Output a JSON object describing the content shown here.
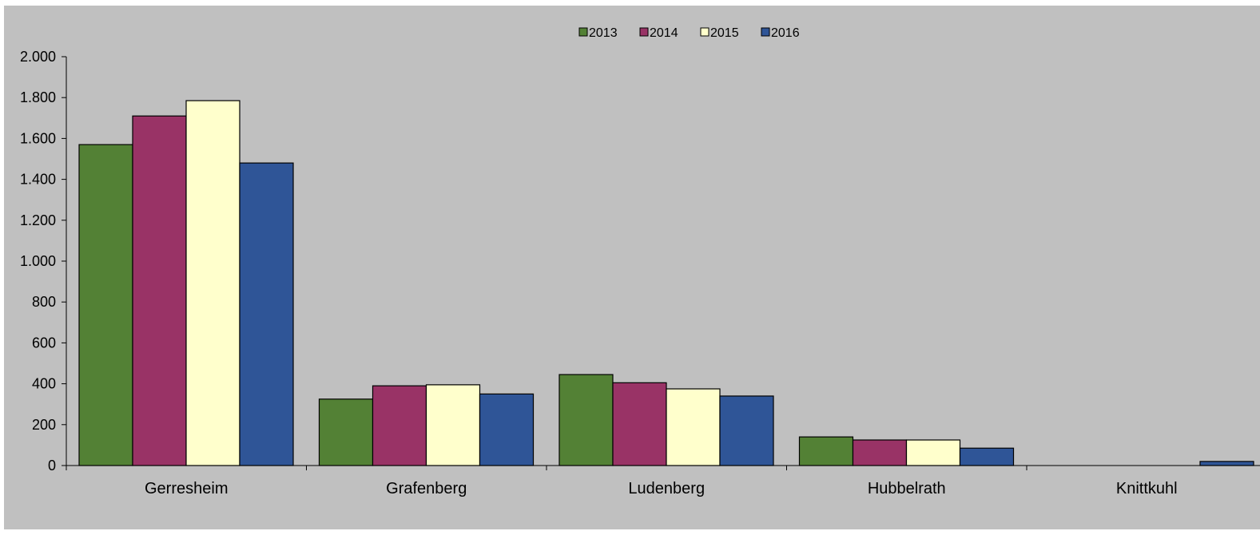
{
  "chart_data": {
    "type": "bar",
    "categories": [
      "Gerresheim",
      "Grafenberg",
      "Ludenberg",
      "Hubbelrath",
      "Knittkuhl"
    ],
    "series": [
      {
        "name": "2013",
        "color": "#538135",
        "values": [
          1570,
          325,
          445,
          140,
          0
        ]
      },
      {
        "name": "2014",
        "color": "#993366",
        "values": [
          1710,
          390,
          405,
          125,
          0
        ]
      },
      {
        "name": "2015",
        "color": "#ffffcc",
        "values": [
          1785,
          395,
          375,
          125,
          0
        ]
      },
      {
        "name": "2016",
        "color": "#2f5597",
        "values": [
          1480,
          350,
          340,
          85,
          20
        ]
      }
    ],
    "ylim": [
      0,
      2000
    ],
    "yticks": [
      0,
      200,
      400,
      600,
      800,
      1000,
      1200,
      1400,
      1600,
      1800,
      2000
    ],
    "ytick_labels": [
      "0",
      "200",
      "400",
      "600",
      "800",
      "1.000",
      "1.200",
      "1.400",
      "1.600",
      "1.800",
      "2.000"
    ],
    "legend_position": "top-center",
    "grid": false,
    "background_color": "#c0c0c0"
  }
}
